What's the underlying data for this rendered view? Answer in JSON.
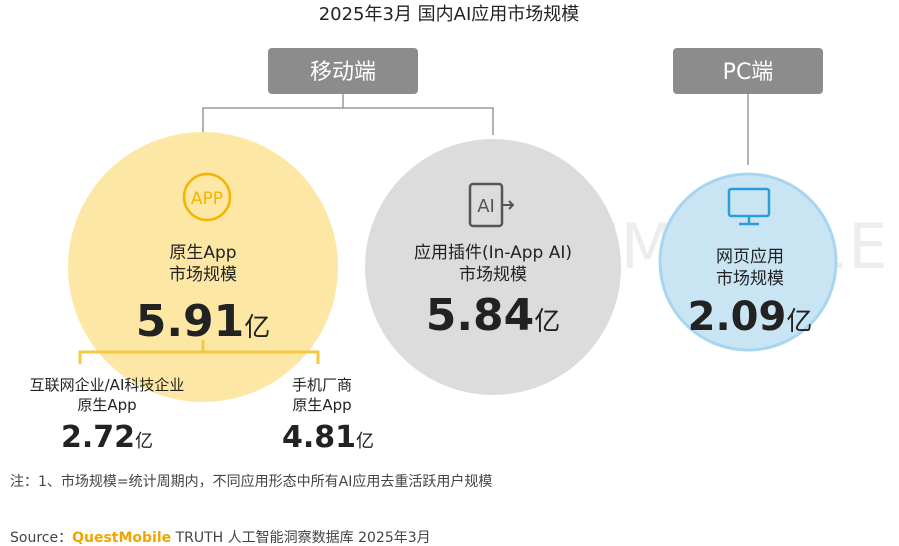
{
  "title": "2025年3月 国内AI应用市场规模",
  "watermark": "QUESTMOBILE",
  "groups": [
    {
      "label": "移动端"
    },
    {
      "label": "PC端"
    }
  ],
  "circles": [
    {
      "icon": "APP",
      "label": [
        "原生App",
        "市场规模"
      ],
      "value": 5.91,
      "unit": "亿"
    },
    {
      "icon": "AI",
      "label": [
        "应用插件(In-App AI)",
        "市场规模"
      ],
      "value": 5.84,
      "unit": "亿"
    },
    {
      "label": [
        "网页应用",
        "市场规模"
      ],
      "value": 2.09,
      "unit": "亿"
    }
  ],
  "breakdown": [
    {
      "label": [
        "互联网企业/AI科技企业",
        "原生App"
      ],
      "value": 2.72,
      "unit": "亿"
    },
    {
      "label": [
        "手机厂商",
        "原生App"
      ],
      "value": 4.81,
      "unit": "亿"
    }
  ],
  "note": "注：1、市场规模=统计周期内，不同应用形态中所有AI应用去重活跃用户规模",
  "source": {
    "prefix": "Source：",
    "brand": "QuestMobile",
    "rest": " TRUTH 人工智能洞察数据库 2025年3月"
  }
}
